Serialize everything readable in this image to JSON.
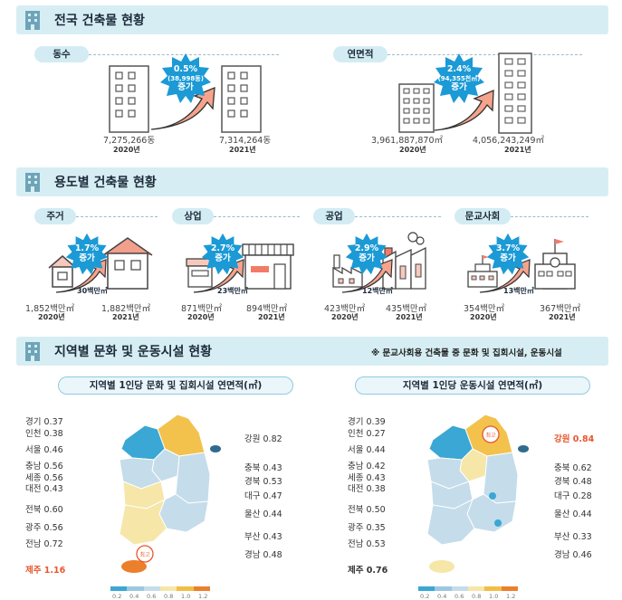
{
  "sections": {
    "s1": "전국 건축물 현황",
    "s2": "용도별 건축물 현황",
    "s3": "지역별 문화 및 운동시설 현황"
  },
  "national": {
    "count": {
      "label": "동수",
      "v2020": "7,275,266동",
      "y2020": "2020년",
      "v2021": "7,314,264동",
      "y2021": "2021년",
      "pct": "0.5%",
      "detail": "(38,998동)",
      "inc": "증가"
    },
    "area": {
      "label": "연면적",
      "v2020": "3,961,887,870㎡",
      "y2020": "2020년",
      "v2021": "4,056,243,249㎡",
      "y2021": "2021년",
      "pct": "2.4%",
      "detail": "(94,355천㎡)",
      "inc": "증가"
    }
  },
  "usage": [
    {
      "label": "주거",
      "pct": "1.7%",
      "inc": "증가",
      "diff": "30백만㎡",
      "v2020": "1,852백만㎡",
      "y2020": "2020년",
      "v2021": "1,882백만㎡",
      "y2021": "2021년"
    },
    {
      "label": "상업",
      "pct": "2.7%",
      "inc": "증가",
      "diff": "23백만㎡",
      "v2020": "871백만㎡",
      "y2020": "2020년",
      "v2021": "894백만㎡",
      "y2021": "2021년"
    },
    {
      "label": "공업",
      "pct": "2.9%",
      "inc": "증가",
      "diff": "12백만㎡",
      "v2020": "423백만㎡",
      "y2020": "2020년",
      "v2021": "435백만㎡",
      "y2021": "2021년"
    },
    {
      "label": "문교사회",
      "pct": "3.7%",
      "inc": "증가",
      "diff": "13백만㎡",
      "v2020": "354백만㎡",
      "y2020": "2020년",
      "v2021": "367백만㎡",
      "y2021": "2021년"
    }
  ],
  "note": "※ 문교사회용 건축물 중 문화 및 집회시설, 운동시설",
  "maps": {
    "left": {
      "title": "지역별 1인당 문화 및 집회시설 연면적(㎡)",
      "badge": "최고",
      "regions": {
        "gyeonggi": "경기 0.37",
        "incheon": "인천 0.38",
        "seoul": "서울 0.46",
        "chungnam": "충남 0.56",
        "sejong": "세종 0.56",
        "daejeon": "대전 0.43",
        "jeonbuk": "전북 0.60",
        "gwangju": "광주 0.56",
        "jeonnam": "전남 0.72",
        "jeju": "제주 1.16",
        "gangwon": "강원 0.82",
        "chungbuk": "충북 0.43",
        "gyeongbuk": "경북 0.53",
        "daegu": "대구 0.47",
        "ulsan": "울산 0.44",
        "busan": "부산 0.43",
        "gyeongnam": "경남 0.48"
      }
    },
    "right": {
      "title": "지역별 1인당 운동시설 연면적(㎡)",
      "badge": "최고",
      "regions": {
        "gyeonggi": "경기 0.39",
        "incheon": "인천 0.27",
        "seoul": "서울 0.44",
        "chungnam": "충남 0.42",
        "sejong": "세종 0.43",
        "daejeon": "대전 0.38",
        "jeonbuk": "전북 0.50",
        "gwangju": "광주 0.35",
        "jeonnam": "전남 0.53",
        "jeju": "제주 0.76",
        "gangwon": "강원 0.84",
        "chungbuk": "충북 0.62",
        "gyeongbuk": "경북 0.48",
        "daegu": "대구 0.28",
        "ulsan": "울산 0.44",
        "busan": "부산 0.33",
        "gyeongnam": "경남 0.46"
      }
    },
    "legend": [
      "0.2",
      "0.4",
      "0.6",
      "0.8",
      "1.0",
      "1.2"
    ]
  },
  "colors": {
    "accent": "#e8572e",
    "sky": "#d6eef3",
    "lowblue": "#3aa7d4",
    "paleblue": "#c5dcea",
    "cream": "#f6e6a8",
    "yellow": "#f2be45",
    "orange": "#ec7f2c",
    "burst": "#1b9ad6"
  }
}
